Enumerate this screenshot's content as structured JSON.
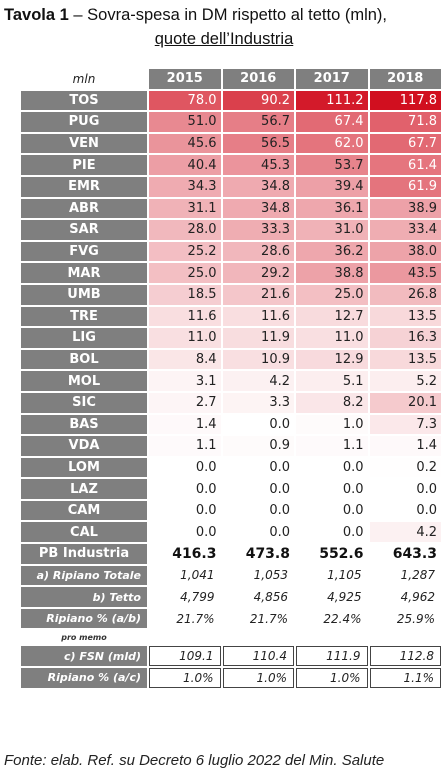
{
  "title": {
    "bold": "Tavola 1",
    "rest": " – Sovra-spesa in DM rispetto al tetto (mln),",
    "line2": "quote dell’Industria"
  },
  "header": {
    "unit": "mln",
    "years": [
      "2015",
      "2016",
      "2017",
      "2018"
    ]
  },
  "regions": [
    {
      "label": "TOS",
      "values": [
        "78.0",
        "90.2",
        "111.2",
        "117.8"
      ]
    },
    {
      "label": "PUG",
      "values": [
        "51.0",
        "56.7",
        "67.4",
        "71.8"
      ]
    },
    {
      "label": "VEN",
      "values": [
        "45.6",
        "56.5",
        "62.0",
        "67.7"
      ]
    },
    {
      "label": "PIE",
      "values": [
        "40.4",
        "45.3",
        "53.7",
        "61.4"
      ]
    },
    {
      "label": "EMR",
      "values": [
        "34.3",
        "34.8",
        "39.4",
        "61.9"
      ]
    },
    {
      "label": "ABR",
      "values": [
        "31.1",
        "34.8",
        "36.1",
        "38.9"
      ]
    },
    {
      "label": "SAR",
      "values": [
        "28.0",
        "33.3",
        "31.0",
        "33.4"
      ]
    },
    {
      "label": "FVG",
      "values": [
        "25.2",
        "28.6",
        "36.2",
        "38.0"
      ]
    },
    {
      "label": "MAR",
      "values": [
        "25.0",
        "29.2",
        "38.8",
        "43.5"
      ]
    },
    {
      "label": "UMB",
      "values": [
        "18.5",
        "21.6",
        "25.0",
        "26.8"
      ]
    },
    {
      "label": "TRE",
      "values": [
        "11.6",
        "11.6",
        "12.7",
        "13.5"
      ]
    },
    {
      "label": "LIG",
      "values": [
        "11.0",
        "11.9",
        "11.0",
        "16.3"
      ]
    },
    {
      "label": "BOL",
      "values": [
        "8.4",
        "10.9",
        "12.9",
        "13.5"
      ]
    },
    {
      "label": "MOL",
      "values": [
        "3.1",
        "4.2",
        "5.1",
        "5.2"
      ]
    },
    {
      "label": "SIC",
      "values": [
        "2.7",
        "3.3",
        "8.2",
        "20.1"
      ]
    },
    {
      "label": "BAS",
      "values": [
        "1.4",
        "0.0",
        "1.0",
        "7.3"
      ]
    },
    {
      "label": "VDA",
      "values": [
        "1.1",
        "0.9",
        "1.1",
        "1.4"
      ]
    },
    {
      "label": "LOM",
      "values": [
        "0.0",
        "0.0",
        "0.0",
        "0.2"
      ]
    },
    {
      "label": "LAZ",
      "values": [
        "0.0",
        "0.0",
        "0.0",
        "0.0"
      ]
    },
    {
      "label": "CAM",
      "values": [
        "0.0",
        "0.0",
        "0.0",
        "0.0"
      ]
    },
    {
      "label": "CAL",
      "values": [
        "0.0",
        "0.0",
        "0.0",
        "4.2"
      ]
    }
  ],
  "heat_max": 117.8,
  "colors": {
    "label_bg": "#7f7f7f",
    "heat_high": "#d10f1f",
    "heat_low": "#ffffff"
  },
  "totals": {
    "label": "PB Industria",
    "values": [
      "416.3",
      "473.8",
      "552.6",
      "643.3"
    ]
  },
  "summary": [
    {
      "label": "a) Ripiano Totale",
      "values": [
        "1,041",
        "1,053",
        "1,105",
        "1,287"
      ]
    },
    {
      "label": "b) Tetto",
      "values": [
        "4,799",
        "4,856",
        "4,925",
        "4,962"
      ]
    },
    {
      "label": "Ripiano % (a/b)",
      "values": [
        "21.7%",
        "21.7%",
        "22.4%",
        "25.9%"
      ]
    }
  ],
  "memo": {
    "label": "pro memo"
  },
  "memo_rows": [
    {
      "label": "c) FSN (mld)",
      "values": [
        "109.1",
        "110.4",
        "111.9",
        "112.8"
      ]
    },
    {
      "label": "Ripiano % (a/c)",
      "values": [
        "1.0%",
        "1.0%",
        "1.0%",
        "1.1%"
      ]
    }
  ],
  "source": "Fonte: elab. Ref. su Decreto 6 luglio 2022 del Min. Salute"
}
